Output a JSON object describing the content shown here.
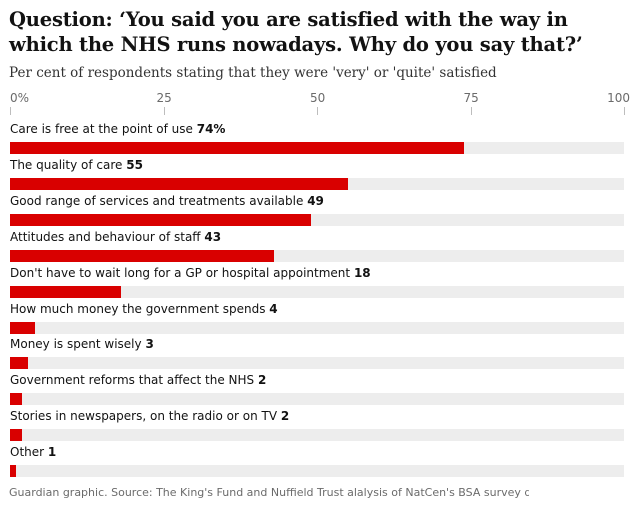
{
  "chart_data": {
    "type": "bar",
    "orientation": "horizontal",
    "title": "Question: ‘You said you are satisfied with the way in which the NHS runs nowadays. Why do you say that?’",
    "subtitle": "Per cent of respondents stating that they were 'very' or 'quite' satisfied",
    "xlim": [
      0,
      100
    ],
    "ticks": [
      "0%",
      "25",
      "50",
      "75",
      "100"
    ],
    "tick_values": [
      0,
      25,
      50,
      75,
      100
    ],
    "bar_color": "#d90000",
    "track_color": "#ededed",
    "categories": [
      "Care is free at the point of use",
      "The quality of care",
      "Good range of services and treatments available",
      "Attitudes and behaviour of staff",
      "Don't have to wait long for a GP or hospital appointment",
      "How much money the government spends",
      "Money is spent wisely",
      "Government reforms that affect the NHS",
      "Stories in newspapers, on the radio or on TV",
      "Other"
    ],
    "values": [
      74,
      55,
      49,
      43,
      18,
      4,
      3,
      2,
      2,
      1
    ],
    "value_labels": [
      "74%",
      "55",
      "49",
      "43",
      "18",
      "4",
      "3",
      "2",
      "2",
      "1"
    ]
  },
  "source": "Guardian graphic. Source: The King's Fund and Nuffield Trust alalysis of NatCen's BSA survey data"
}
